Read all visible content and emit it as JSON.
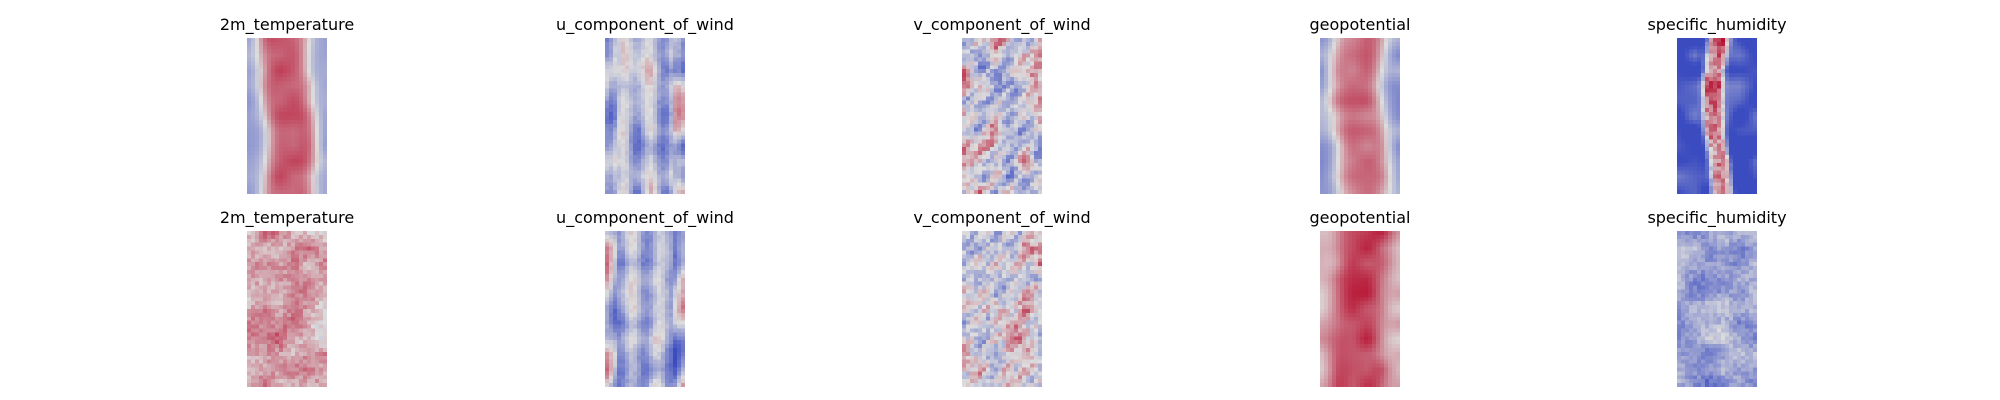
{
  "chart_data": {
    "type": "heatmap",
    "layout": {
      "rows": 2,
      "cols": 5
    },
    "colormap": "coolwarm",
    "colormap_colors": [
      "#3b4cc0",
      "#dddddd",
      "#b40426"
    ],
    "axes": "off",
    "panels": [
      {
        "row": 0,
        "col": 0,
        "title": "2m_temperature",
        "pattern": "band",
        "base": 0.82,
        "edge": 0.32,
        "width": 0.34,
        "noise": 0.07
      },
      {
        "row": 0,
        "col": 1,
        "title": "u_component_of_wind",
        "pattern": "streaks",
        "base": 0.38,
        "edge": 0.45,
        "width": 0.3,
        "noise": 0.2
      },
      {
        "row": 0,
        "col": 2,
        "title": "v_component_of_wind",
        "pattern": "eddies",
        "base": 0.5,
        "edge": 0.5,
        "width": 0.3,
        "noise": 0.28
      },
      {
        "row": 0,
        "col": 3,
        "title": "geopotential",
        "pattern": "band",
        "base": 0.76,
        "edge": 0.28,
        "width": 0.36,
        "noise": 0.08
      },
      {
        "row": 0,
        "col": 4,
        "title": "specific_humidity",
        "pattern": "narrow-band",
        "base": 0.78,
        "edge": 0.05,
        "width": 0.14,
        "noise": 0.18
      },
      {
        "row": 1,
        "col": 0,
        "title": "2m_temperature",
        "pattern": "blocky",
        "base": 0.7,
        "edge": 0.6,
        "width": 0.4,
        "noise": 0.14
      },
      {
        "row": 1,
        "col": 1,
        "title": "u_component_of_wind",
        "pattern": "streaks",
        "base": 0.34,
        "edge": 0.38,
        "width": 0.3,
        "noise": 0.15
      },
      {
        "row": 1,
        "col": 2,
        "title": "v_component_of_wind",
        "pattern": "eddies",
        "base": 0.5,
        "edge": 0.5,
        "width": 0.3,
        "noise": 0.22
      },
      {
        "row": 1,
        "col": 3,
        "title": "geopotential",
        "pattern": "band",
        "base": 0.88,
        "edge": 0.6,
        "width": 0.36,
        "noise": 0.09
      },
      {
        "row": 1,
        "col": 4,
        "title": "specific_humidity",
        "pattern": "speckle",
        "base": 0.3,
        "edge": 0.28,
        "width": 0.3,
        "noise": 0.14
      }
    ]
  }
}
